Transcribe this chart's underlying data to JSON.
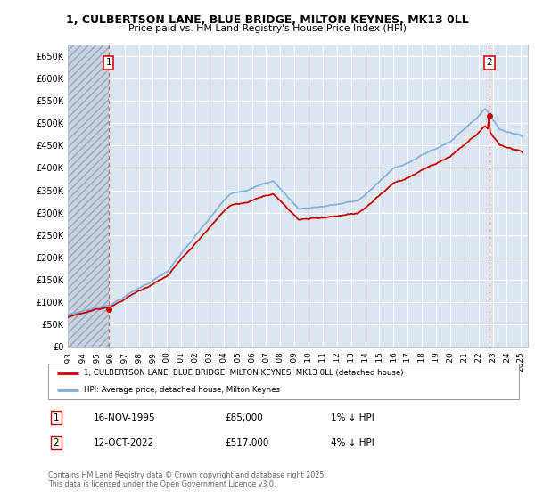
{
  "title": "1, CULBERTSON LANE, BLUE BRIDGE, MILTON KEYNES, MK13 0LL",
  "subtitle": "Price paid vs. HM Land Registry's House Price Index (HPI)",
  "ylabel_ticks": [
    "£0",
    "£50K",
    "£100K",
    "£150K",
    "£200K",
    "£250K",
    "£300K",
    "£350K",
    "£400K",
    "£450K",
    "£500K",
    "£550K",
    "£600K",
    "£650K"
  ],
  "ytick_values": [
    0,
    50000,
    100000,
    150000,
    200000,
    250000,
    300000,
    350000,
    400000,
    450000,
    500000,
    550000,
    600000,
    650000
  ],
  "ylim": [
    0,
    675000
  ],
  "xlim_start": 1993.0,
  "xlim_end": 2025.5,
  "purchase1_year": 1995.87,
  "purchase1_price": 85000,
  "purchase2_year": 2022.78,
  "purchase2_price": 517000,
  "hpi_color": "#7aaddc",
  "price_color": "#cc0000",
  "background_color": "#dce6f1",
  "plot_bg_color": "#dce6f1",
  "outer_bg_color": "#ffffff",
  "grid_color": "#ffffff",
  "legend_label1": "1, CULBERTSON LANE, BLUE BRIDGE, MILTON KEYNES, MK13 0LL (detached house)",
  "legend_label2": "HPI: Average price, detached house, Milton Keynes",
  "table_row1": [
    "1",
    "16-NOV-1995",
    "£85,000",
    "1% ↓ HPI"
  ],
  "table_row2": [
    "2",
    "12-OCT-2022",
    "£517,000",
    "4% ↓ HPI"
  ],
  "footer": "Contains HM Land Registry data © Crown copyright and database right 2025.\nThis data is licensed under the Open Government Licence v3.0.",
  "xtick_years": [
    1993,
    1994,
    1995,
    1996,
    1997,
    1998,
    1999,
    2000,
    2001,
    2002,
    2003,
    2004,
    2005,
    2006,
    2007,
    2008,
    2009,
    2010,
    2011,
    2012,
    2013,
    2014,
    2015,
    2016,
    2017,
    2018,
    2019,
    2020,
    2021,
    2022,
    2023,
    2024,
    2025
  ]
}
